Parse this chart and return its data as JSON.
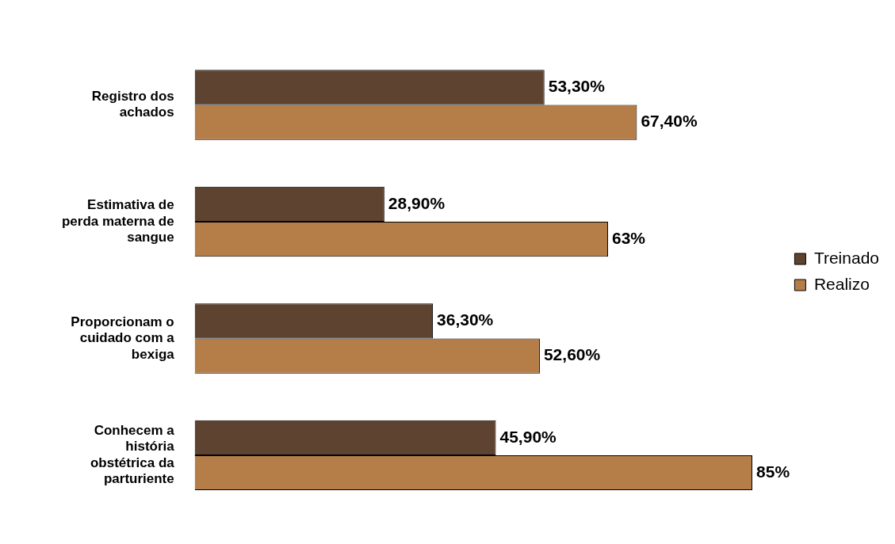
{
  "chart_data": {
    "type": "bar",
    "orientation": "horizontal",
    "legend": "right",
    "categories": [
      "Registro dos achados",
      "Estimativa de perda materna de sangue",
      "Proporcionam o cuidado com a bexiga",
      "Conhecem a história obstétrica da parturiente"
    ],
    "series": [
      {
        "name": "Treinado",
        "color": "#5e4330",
        "values": [
          53.3,
          28.9,
          36.3,
          45.9
        ],
        "value_labels": [
          "53,30%",
          "28,90%",
          "36,30%",
          "45,90%"
        ]
      },
      {
        "name": "Realizo",
        "color": "#b57d48",
        "values": [
          67.4,
          63,
          52.6,
          85
        ],
        "value_labels": [
          "67,40%",
          "63%",
          "52,60%",
          "85%"
        ]
      }
    ]
  }
}
